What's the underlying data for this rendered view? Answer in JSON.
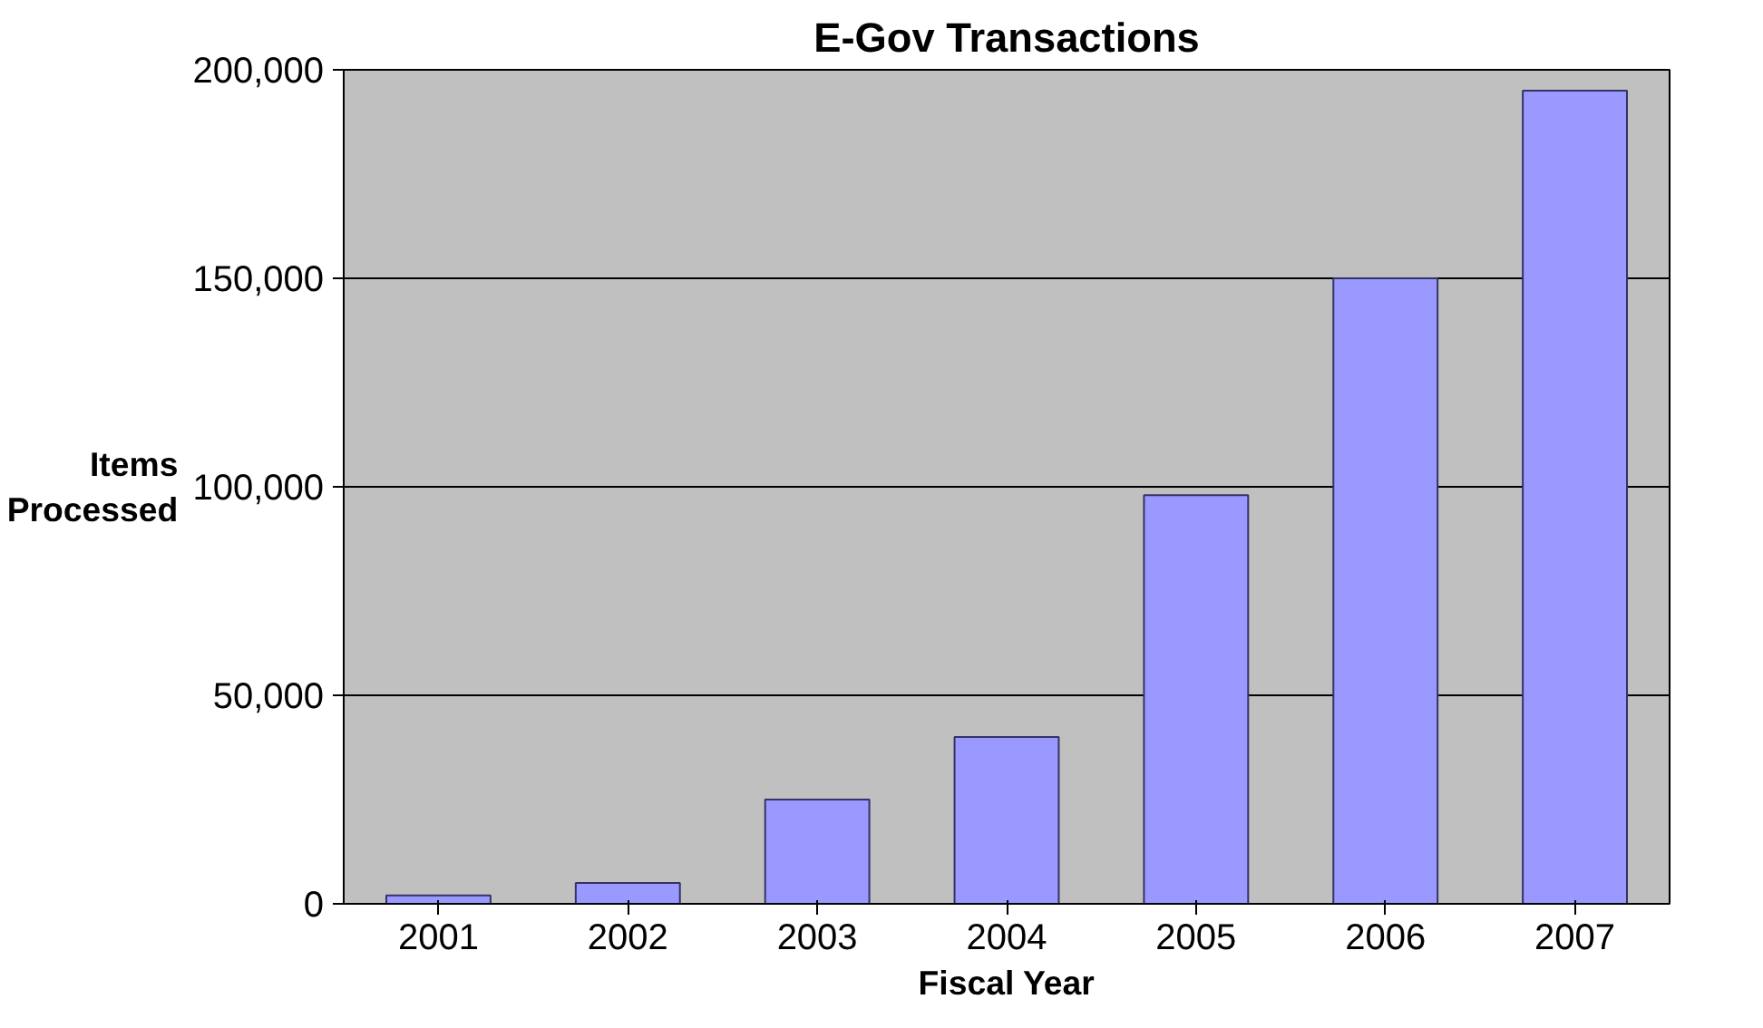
{
  "chart_data": {
    "type": "bar",
    "title": "E-Gov Transactions",
    "xlabel": "Fiscal Year",
    "ylabel": "Items\nProcessed",
    "categories": [
      "2001",
      "2002",
      "2003",
      "2004",
      "2005",
      "2006",
      "2007"
    ],
    "values": [
      2000,
      5000,
      25000,
      40000,
      98000,
      150000,
      195000
    ],
    "color": "#9999ff",
    "ylim": [
      0,
      200000
    ],
    "yticks": [
      0,
      {
        "value": 50000,
        "label": "50,000"
      },
      {
        "value": 100000,
        "label": "100,000"
      },
      {
        "value": 150000,
        "label": "150,000"
      },
      {
        "value": 200000,
        "label": "200,000"
      }
    ],
    "grid": "y"
  }
}
